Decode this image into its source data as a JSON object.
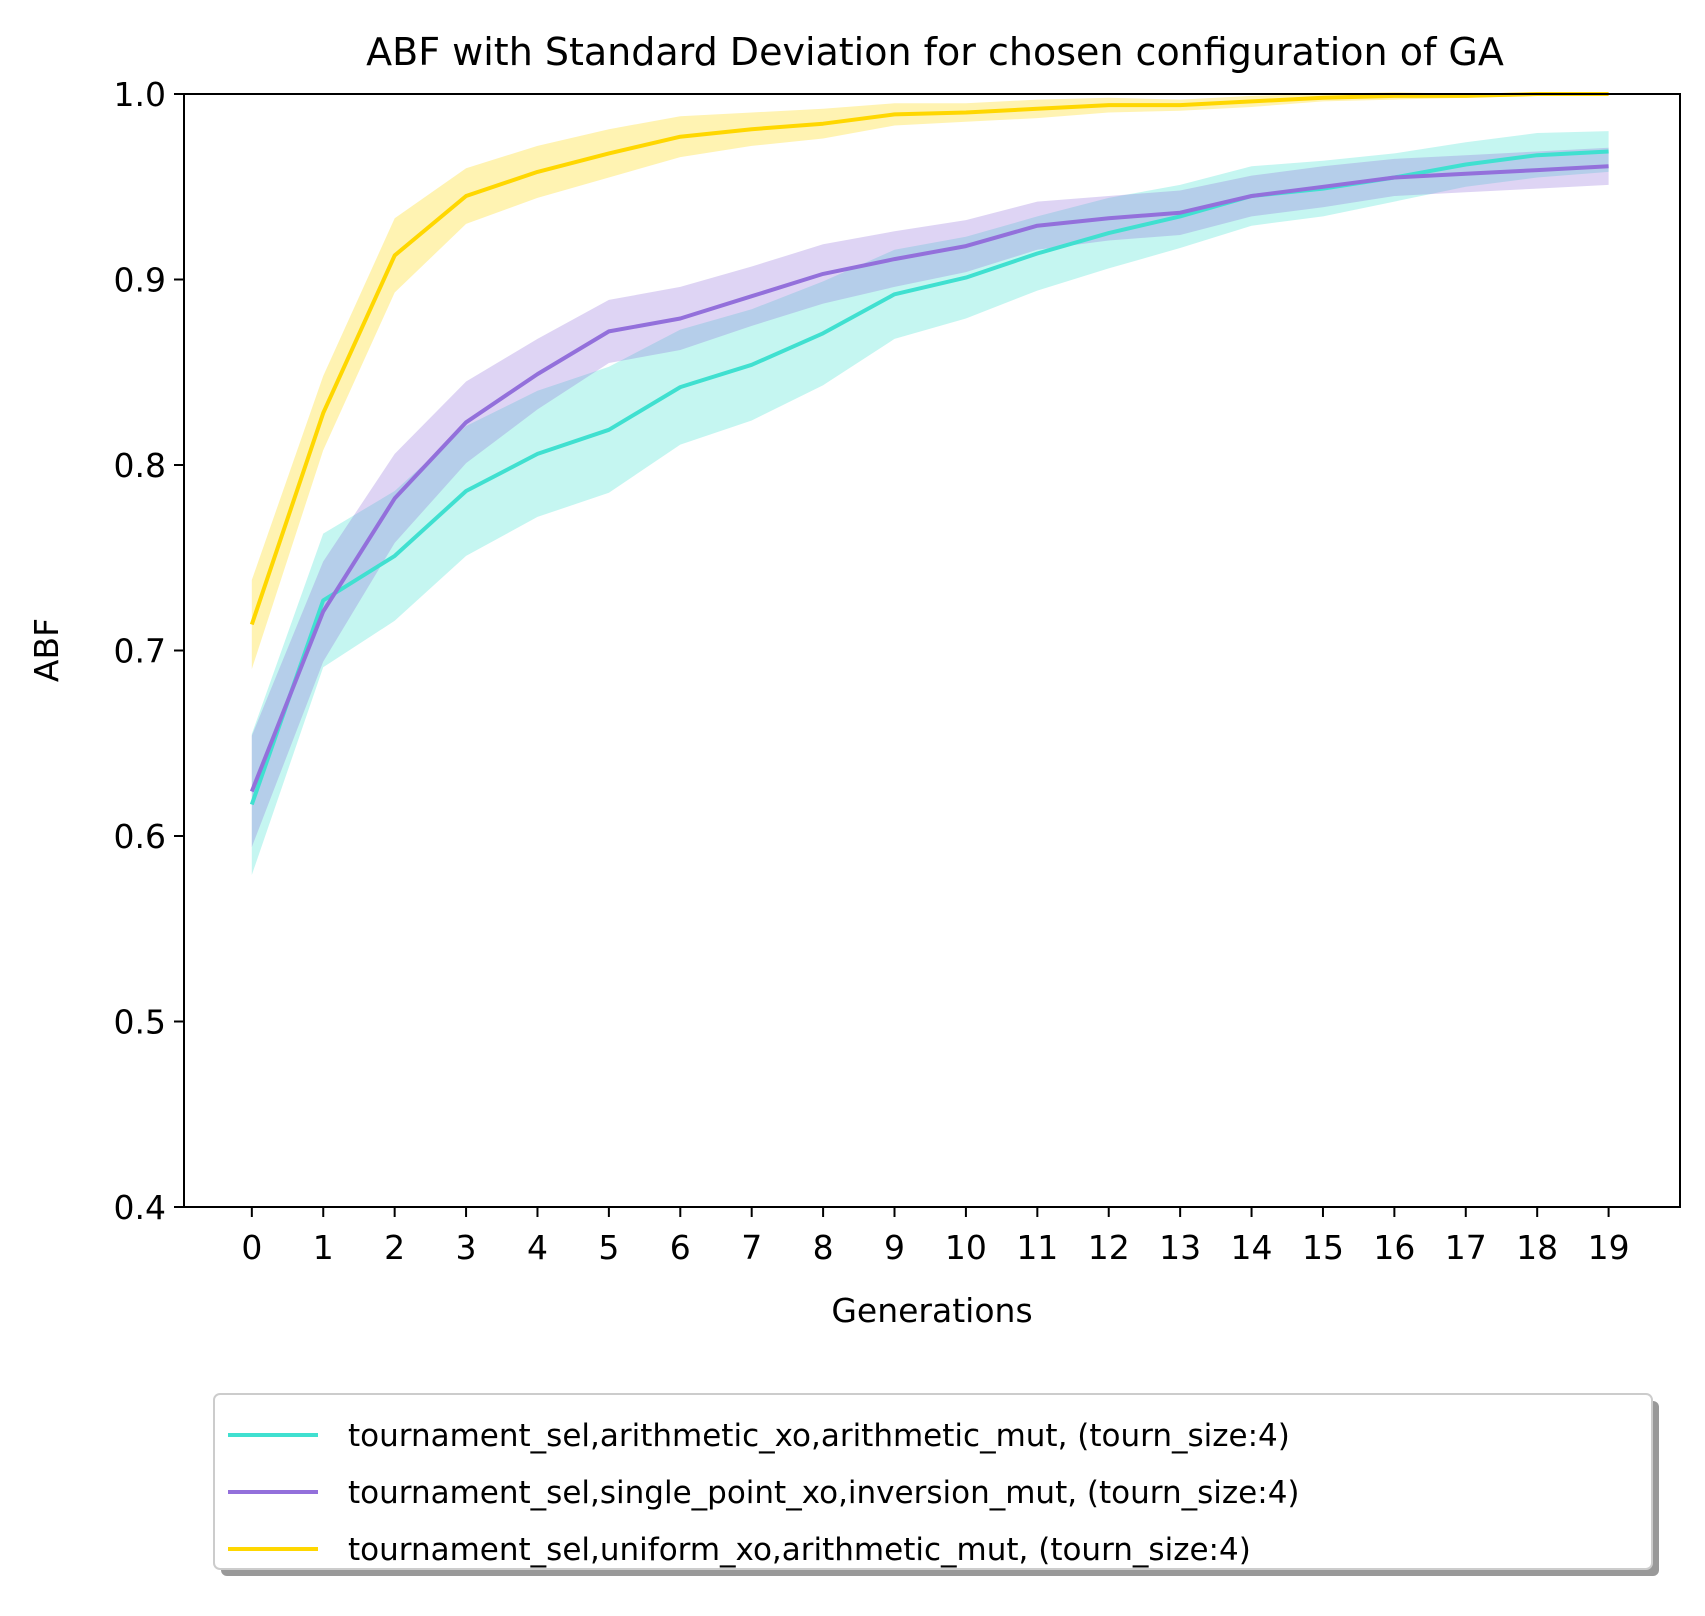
{
  "chart_data": {
    "type": "line",
    "title": "ABF with Standard Deviation for chosen configuration of GA",
    "xlabel": "Generations",
    "ylabel": "ABF",
    "xlim": [
      -0.95,
      20
    ],
    "ylim": [
      0.4,
      1.0
    ],
    "x": [
      0,
      1,
      2,
      3,
      4,
      5,
      6,
      7,
      8,
      9,
      10,
      11,
      12,
      13,
      14,
      15,
      16,
      17,
      18,
      19
    ],
    "xticks": [
      "0",
      "1",
      "2",
      "3",
      "4",
      "5",
      "6",
      "7",
      "8",
      "9",
      "10",
      "11",
      "12",
      "13",
      "14",
      "15",
      "16",
      "17",
      "18",
      "19"
    ],
    "yticks": [
      "0.4",
      "0.5",
      "0.6",
      "0.7",
      "0.8",
      "0.9",
      "1.0"
    ],
    "legend_position": "below",
    "grid": false,
    "series": [
      {
        "name": "tournament_sel,arithmetic_xo,arithmetic_mut, (tourn_size:4)",
        "color": "#40e0d0",
        "values": [
          0.617,
          0.727,
          0.751,
          0.786,
          0.806,
          0.819,
          0.842,
          0.854,
          0.871,
          0.892,
          0.901,
          0.914,
          0.925,
          0.934,
          0.945,
          0.949,
          0.955,
          0.962,
          0.967,
          0.969
        ],
        "std": [
          0.038,
          0.036,
          0.035,
          0.035,
          0.034,
          0.034,
          0.031,
          0.03,
          0.028,
          0.024,
          0.022,
          0.02,
          0.019,
          0.017,
          0.016,
          0.015,
          0.013,
          0.012,
          0.012,
          0.011
        ]
      },
      {
        "name": "tournament_sel,single_point_xo,inversion_mut, (tourn_size:4)",
        "color": "#9370db",
        "values": [
          0.624,
          0.721,
          0.782,
          0.823,
          0.849,
          0.872,
          0.879,
          0.891,
          0.903,
          0.911,
          0.918,
          0.929,
          0.933,
          0.936,
          0.945,
          0.95,
          0.955,
          0.957,
          0.959,
          0.961
        ],
        "std": [
          0.03,
          0.027,
          0.024,
          0.022,
          0.019,
          0.017,
          0.017,
          0.016,
          0.016,
          0.015,
          0.014,
          0.013,
          0.012,
          0.012,
          0.011,
          0.011,
          0.01,
          0.01,
          0.01,
          0.01
        ]
      },
      {
        "name": "tournament_sel,uniform_xo,arithmetic_mut, (tourn_size:4)",
        "color": "#ffd700",
        "values": [
          0.714,
          0.828,
          0.913,
          0.945,
          0.958,
          0.968,
          0.977,
          0.981,
          0.984,
          0.989,
          0.99,
          0.992,
          0.994,
          0.994,
          0.996,
          0.998,
          0.999,
          0.999,
          1.0,
          1.0
        ],
        "std": [
          0.024,
          0.02,
          0.02,
          0.015,
          0.014,
          0.013,
          0.011,
          0.009,
          0.008,
          0.006,
          0.005,
          0.005,
          0.004,
          0.003,
          0.003,
          0.002,
          0.002,
          0.001,
          0.001,
          0.001
        ]
      }
    ]
  }
}
